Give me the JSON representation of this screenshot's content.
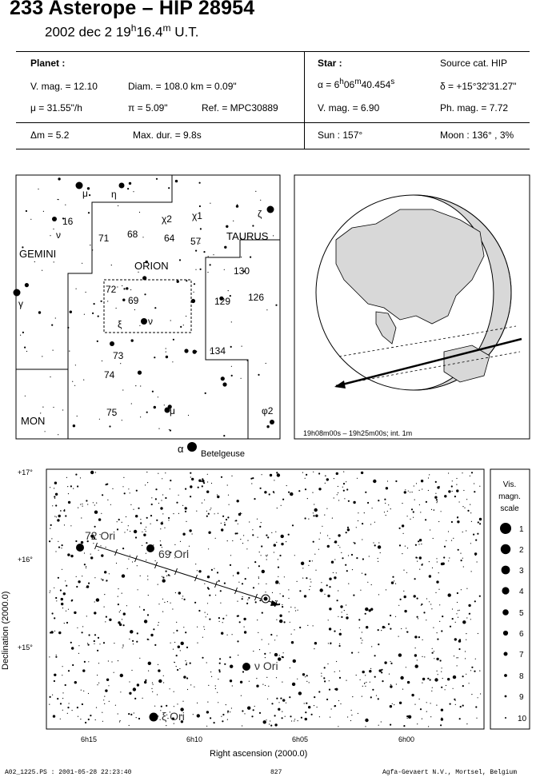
{
  "header": {
    "title": "233 Asterope  –  HIP 28954",
    "date_prefix": "2002 dec  2  19",
    "h_sup": "h",
    "minutes": "16.4",
    "m_sup": "m",
    "ut": " U.T."
  },
  "planet": {
    "heading": "Planet :",
    "vmag": "V. mag. = 12.10",
    "diam": "Diam. = 108.0 km = 0.09\"",
    "mu": "μ = 31.55\"/h",
    "pi": "π = 5.09\"",
    "ref": "Ref. = MPC30889"
  },
  "star": {
    "heading": "Star :",
    "source": "Source cat. HIP",
    "alpha_pre": "α = 6",
    "alpha_h": "h",
    "alpha_mid": "06",
    "alpha_m": "m",
    "alpha_val": "40.454",
    "alpha_s": "s",
    "delta": "δ = +15°32'31.27\"",
    "vmag": "V. mag. = 6.90",
    "phmag": "Ph. mag. = 7.72"
  },
  "summary": {
    "dm": "Δm = 5.2",
    "maxdur": "Max. dur. = 9.8s",
    "sun": "Sun : 157°",
    "moon": "Moon : 136° ,  3%"
  },
  "finder": {
    "constellations": [
      "GEMINI",
      "ORION",
      "TAURUS",
      "MON"
    ],
    "labels": [
      "μ",
      "η",
      "16",
      "ν",
      "χ2",
      "χ1",
      "ζ",
      "71",
      "68",
      "64",
      "57",
      "130",
      "126",
      "129",
      "72",
      "69",
      "ξ",
      "ν",
      "134",
      "73",
      "74",
      "75",
      "μ",
      "φ2",
      "γ"
    ],
    "betelgeuse_alpha": "α",
    "betelgeuse": "Betelgeuse"
  },
  "globe": {
    "caption": "19h08m00s – 19h25m00s; int.  1m"
  },
  "detail": {
    "dec_ticks": [
      "+17°",
      "+16°",
      "+15°"
    ],
    "ra_ticks": [
      "6h15",
      "6h10",
      "6h05",
      "6h00"
    ],
    "xlabel": "Right ascension (2000.0)",
    "ylabel": "Declination (2000.0)",
    "star_labels": [
      "72 Ori",
      "69 Ori",
      "ν Ori",
      "ξ Ori"
    ]
  },
  "scale": {
    "title1": "Vis.",
    "title2": "magn.",
    "title3": "scale",
    "levels": [
      "1",
      "2",
      "3",
      "4",
      "5",
      "6",
      "7",
      "8",
      "9",
      "10"
    ]
  },
  "footer": {
    "left": "A02_1225.PS : 2001-05-28 22:23:40",
    "center": "827",
    "right": "Agfa-Gevaert N.V., Mortsel, Belgium"
  }
}
